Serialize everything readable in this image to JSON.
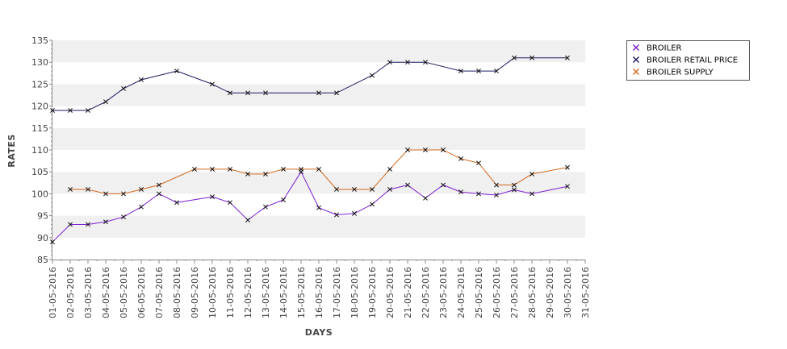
{
  "chart_data": {
    "type": "line",
    "title": "",
    "xlabel": "DAYS",
    "ylabel": "RATES",
    "ylim": [
      85,
      135
    ],
    "y_ticks": [
      85,
      90,
      95,
      100,
      105,
      110,
      115,
      120,
      125,
      130,
      135
    ],
    "grid": "alternating horizontal bands",
    "legend_position": "top-right",
    "categories": [
      "01-05-2016",
      "02-05-2016",
      "03-05-2016",
      "04-05-2016",
      "05-05-2016",
      "06-05-2016",
      "07-05-2016",
      "08-05-2016",
      "09-05-2016",
      "10-05-2016",
      "11-05-2016",
      "12-05-2016",
      "13-05-2016",
      "14-05-2016",
      "15-05-2016",
      "16-05-2016",
      "17-05-2016",
      "18-05-2016",
      "19-05-2016",
      "20-05-2016",
      "21-05-2016",
      "22-05-2016",
      "23-05-2016",
      "24-05-2016",
      "25-05-2016",
      "26-05-2016",
      "27-05-2016",
      "28-05-2016",
      "29-05-2016",
      "30-05-2016",
      "31-05-2016"
    ],
    "series": [
      {
        "name": "BROILER",
        "color": "#7a1fd1",
        "points": [
          {
            "x": "01-05-2016",
            "y": 89
          },
          {
            "x": "02-05-2016",
            "y": 93
          },
          {
            "x": "03-05-2016",
            "y": 93
          },
          {
            "x": "04-05-2016",
            "y": 93.6
          },
          {
            "x": "05-05-2016",
            "y": 94.7
          },
          {
            "x": "06-05-2016",
            "y": 97
          },
          {
            "x": "07-05-2016",
            "y": 100
          },
          {
            "x": "08-05-2016",
            "y": 98
          },
          {
            "x": "10-05-2016",
            "y": 99.3
          },
          {
            "x": "11-05-2016",
            "y": 98
          },
          {
            "x": "12-05-2016",
            "y": 94
          },
          {
            "x": "13-05-2016",
            "y": 97
          },
          {
            "x": "14-05-2016",
            "y": 98.6
          },
          {
            "x": "15-05-2016",
            "y": 105
          },
          {
            "x": "16-05-2016",
            "y": 96.8
          },
          {
            "x": "17-05-2016",
            "y": 95.2
          },
          {
            "x": "18-05-2016",
            "y": 95.5
          },
          {
            "x": "19-05-2016",
            "y": 97.6
          },
          {
            "x": "20-05-2016",
            "y": 101
          },
          {
            "x": "21-05-2016",
            "y": 102
          },
          {
            "x": "22-05-2016",
            "y": 99
          },
          {
            "x": "23-05-2016",
            "y": 102
          },
          {
            "x": "24-05-2016",
            "y": 100.4
          },
          {
            "x": "25-05-2016",
            "y": 100
          },
          {
            "x": "26-05-2016",
            "y": 99.7
          },
          {
            "x": "27-05-2016",
            "y": 100.9
          },
          {
            "x": "28-05-2016",
            "y": 100
          },
          {
            "x": "30-05-2016",
            "y": 101.7
          }
        ]
      },
      {
        "name": "BROILER RETAIL PRICE",
        "color": "#1a1a5e",
        "points": [
          {
            "x": "01-05-2016",
            "y": 119
          },
          {
            "x": "02-05-2016",
            "y": 119
          },
          {
            "x": "03-05-2016",
            "y": 119
          },
          {
            "x": "04-05-2016",
            "y": 121
          },
          {
            "x": "05-05-2016",
            "y": 124
          },
          {
            "x": "06-05-2016",
            "y": 126
          },
          {
            "x": "08-05-2016",
            "y": 128
          },
          {
            "x": "10-05-2016",
            "y": 125
          },
          {
            "x": "11-05-2016",
            "y": 123
          },
          {
            "x": "12-05-2016",
            "y": 123
          },
          {
            "x": "13-05-2016",
            "y": 123
          },
          {
            "x": "16-05-2016",
            "y": 123
          },
          {
            "x": "17-05-2016",
            "y": 123
          },
          {
            "x": "19-05-2016",
            "y": 127
          },
          {
            "x": "20-05-2016",
            "y": 130
          },
          {
            "x": "21-05-2016",
            "y": 130
          },
          {
            "x": "22-05-2016",
            "y": 130
          },
          {
            "x": "24-05-2016",
            "y": 128
          },
          {
            "x": "25-05-2016",
            "y": 128
          },
          {
            "x": "26-05-2016",
            "y": 128
          },
          {
            "x": "27-05-2016",
            "y": 131
          },
          {
            "x": "28-05-2016",
            "y": 131
          },
          {
            "x": "30-05-2016",
            "y": 131
          }
        ]
      },
      {
        "name": "BROILER SUPPLY",
        "color": "#d2691e",
        "points": [
          {
            "x": "02-05-2016",
            "y": 101
          },
          {
            "x": "03-05-2016",
            "y": 101
          },
          {
            "x": "04-05-2016",
            "y": 100
          },
          {
            "x": "05-05-2016",
            "y": 100
          },
          {
            "x": "06-05-2016",
            "y": 101
          },
          {
            "x": "07-05-2016",
            "y": 102
          },
          {
            "x": "09-05-2016",
            "y": 105.6
          },
          {
            "x": "10-05-2016",
            "y": 105.6
          },
          {
            "x": "11-05-2016",
            "y": 105.6
          },
          {
            "x": "12-05-2016",
            "y": 104.5
          },
          {
            "x": "13-05-2016",
            "y": 104.5
          },
          {
            "x": "14-05-2016",
            "y": 105.6
          },
          {
            "x": "15-05-2016",
            "y": 105.6
          },
          {
            "x": "16-05-2016",
            "y": 105.6
          },
          {
            "x": "17-05-2016",
            "y": 101
          },
          {
            "x": "18-05-2016",
            "y": 101
          },
          {
            "x": "19-05-2016",
            "y": 101
          },
          {
            "x": "20-05-2016",
            "y": 105.6
          },
          {
            "x": "21-05-2016",
            "y": 110
          },
          {
            "x": "22-05-2016",
            "y": 110
          },
          {
            "x": "23-05-2016",
            "y": 110
          },
          {
            "x": "24-05-2016",
            "y": 108
          },
          {
            "x": "25-05-2016",
            "y": 107
          },
          {
            "x": "26-05-2016",
            "y": 102
          },
          {
            "x": "27-05-2016",
            "y": 102
          },
          {
            "x": "28-05-2016",
            "y": 104.5
          },
          {
            "x": "30-05-2016",
            "y": 106
          }
        ]
      }
    ]
  }
}
